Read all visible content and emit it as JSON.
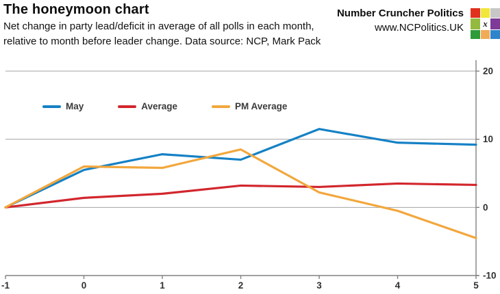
{
  "header": {
    "title": "The honeymoon chart",
    "subtitle_line1": "Net change in party lead/deficit in average of all polls in each month,",
    "subtitle_line2": "relative to month before leader change. Data source: NCP, Mark Pack",
    "brand_name": "Number Cruncher Politics",
    "brand_url": "www.NCPolitics.UK",
    "logo_cells": [
      {
        "color": "#e0301e",
        "label": ""
      },
      {
        "color": "#f2e63a",
        "label": ""
      },
      {
        "color": "#c7c7c7",
        "label": ""
      },
      {
        "color": "#94b93f",
        "label": ""
      },
      {
        "color": "#ffffff",
        "label": "x"
      },
      {
        "color": "#7d3a96",
        "label": ""
      },
      {
        "color": "#2e9b38",
        "label": ""
      },
      {
        "color": "#f1ab57",
        "label": ""
      },
      {
        "color": "#2f85cc",
        "label": ""
      }
    ]
  },
  "chart_data": {
    "type": "line",
    "x": [
      -1,
      0,
      1,
      2,
      3,
      4,
      5
    ],
    "series": [
      {
        "name": "May",
        "color": "#1581c5",
        "values": [
          0,
          5.5,
          7.8,
          7.0,
          11.5,
          9.5,
          9.2
        ]
      },
      {
        "name": "Average",
        "color": "#d2262d",
        "values": [
          0,
          1.4,
          2.0,
          3.2,
          3.0,
          3.5,
          3.3
        ]
      },
      {
        "name": "PM Average",
        "color": "#f2a73d",
        "values": [
          0,
          6.0,
          5.8,
          8.5,
          2.2,
          -0.5,
          -4.5
        ]
      }
    ],
    "xlim": [
      -1,
      5
    ],
    "ylim": [
      -10,
      20
    ],
    "x_ticks": [
      -1,
      0,
      1,
      2,
      3,
      4,
      5
    ],
    "y_ticks": [
      -10,
      0,
      10,
      20
    ],
    "grid_y_values": [
      0,
      10,
      20
    ],
    "grid_on": true,
    "legend_position": "top-left-inside",
    "axis_color": "#808080",
    "grid_color": "#a3a3a3",
    "title": "The honeymoon chart",
    "xlabel": "",
    "ylabel": ""
  }
}
